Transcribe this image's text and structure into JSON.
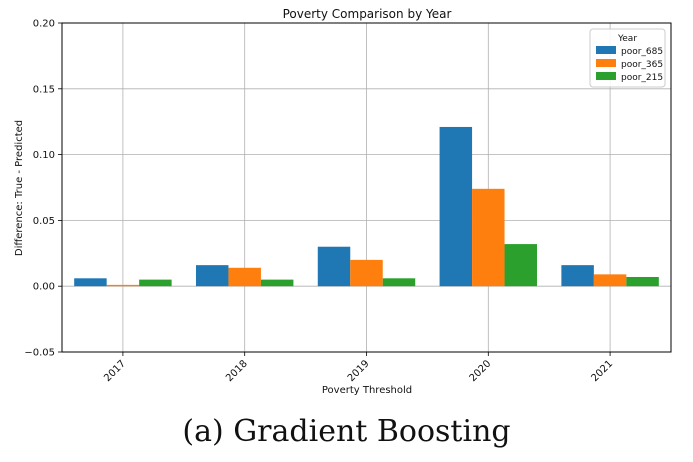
{
  "chart_data": {
    "type": "bar",
    "title": "Poverty Comparison by Year",
    "xlabel": "Poverty Threshold",
    "ylabel": "Difference: True - Predicted",
    "categories": [
      "2017",
      "2018",
      "2019",
      "2020",
      "2021"
    ],
    "series": [
      {
        "name": "poor_685",
        "color": "#1f77b4",
        "values": [
          0.006,
          0.016,
          0.03,
          0.121,
          0.016
        ]
      },
      {
        "name": "poor_365",
        "color": "#ff7f0e",
        "values": [
          0.001,
          0.014,
          0.02,
          0.074,
          0.009
        ]
      },
      {
        "name": "poor_215",
        "color": "#2ca02c",
        "values": [
          0.005,
          0.005,
          0.006,
          0.032,
          0.007
        ]
      }
    ],
    "ylim": [
      -0.05,
      0.2
    ],
    "yticks": [
      "−0.05",
      "0.00",
      "0.05",
      "0.10",
      "0.15",
      "0.20"
    ],
    "ytick_values": [
      -0.05,
      0.0,
      0.05,
      0.1,
      0.15,
      0.2
    ],
    "grid": true,
    "legend": {
      "title": "Year",
      "placement": "top-right"
    }
  },
  "caption": "(a) Gradient Boosting"
}
